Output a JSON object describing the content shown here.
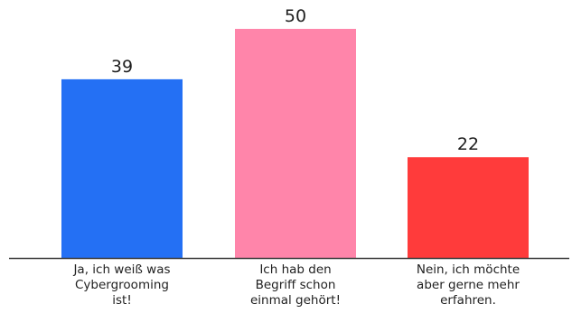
{
  "chart_data": {
    "type": "bar",
    "categories": [
      [
        "Ja, ich weiß was",
        "Cybergrooming",
        "ist!"
      ],
      [
        "Ich hab den",
        "Begriff schon",
        "einmal gehört!"
      ],
      [
        "Nein, ich möchte",
        "aber gerne mehr",
        "erfahren."
      ]
    ],
    "values": [
      39,
      50,
      22
    ],
    "data_labels": [
      "39",
      "50",
      "22"
    ],
    "colors": [
      "#2470f4",
      "#ff85aa",
      "#ff3b3b"
    ],
    "axis_color": "#3a3a3a",
    "title": "",
    "xlabel": "",
    "ylabel": "",
    "ylim": [
      0,
      50
    ],
    "grid": false,
    "legend": "none"
  }
}
